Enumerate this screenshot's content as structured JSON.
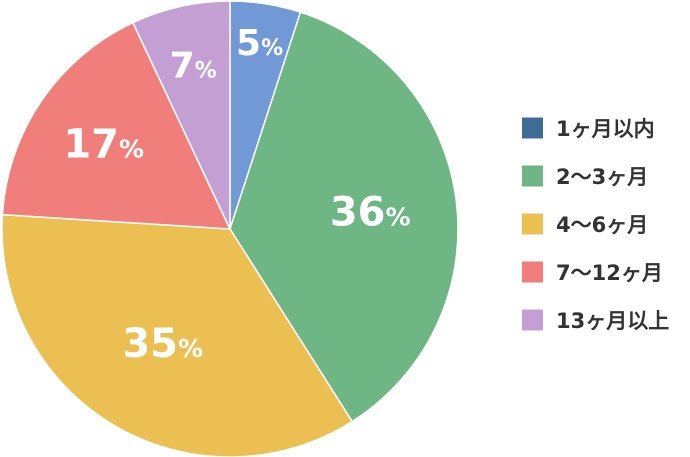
{
  "chart_data": {
    "type": "pie",
    "start_angle_deg": 0,
    "direction": "clockwise",
    "legend_position": "right",
    "slices": [
      {
        "label": "1ヶ月以内",
        "value": 5,
        "value_label": "5",
        "unit": "%",
        "slice_color": "#7099d6",
        "legend_color": "#3e6c96"
      },
      {
        "label": "2〜3ヶ月",
        "value": 36,
        "value_label": "36",
        "unit": "%",
        "slice_color": "#6fb685",
        "legend_color": "#6fb685"
      },
      {
        "label": "4〜6ヶ月",
        "value": 35,
        "value_label": "35",
        "unit": "%",
        "slice_color": "#ebbf52",
        "legend_color": "#ebbf52"
      },
      {
        "label": "7〜12ヶ月",
        "value": 17,
        "value_label": "17",
        "unit": "%",
        "slice_color": "#f07f7b",
        "legend_color": "#f07f7b"
      },
      {
        "label": "13ヶ月以上",
        "value": 7,
        "value_label": "7",
        "unit": "%",
        "slice_color": "#c49fd3",
        "legend_color": "#c49fd3"
      }
    ]
  }
}
